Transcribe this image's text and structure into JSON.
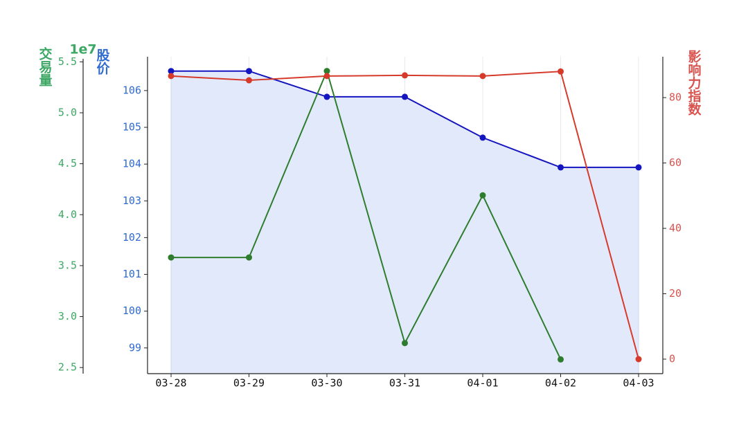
{
  "chart_data": {
    "type": "line",
    "categories": [
      "03-28",
      "03-29",
      "03-30",
      "03-31",
      "04-01",
      "04-02",
      "04-03"
    ],
    "ylabel": "股价",
    "y2label": "影响力指数",
    "y3label": "交易量",
    "y3scale": "1e7",
    "ylim": [
      98.3,
      106.92
    ],
    "yticks": [
      99,
      100,
      101,
      102,
      103,
      104,
      105,
      106
    ],
    "y2lim": [
      -4.44,
      92.5
    ],
    "y2ticks": [
      0,
      20,
      40,
      60,
      80
    ],
    "y3lim": [
      2.44,
      5.55
    ],
    "y3ticks": [
      {
        "value": 2.5,
        "label": "2.5"
      },
      {
        "value": 3,
        "label": "3.0"
      },
      {
        "value": 3.5,
        "label": "3.5"
      },
      {
        "value": 4,
        "label": "4.0"
      },
      {
        "value": 4.5,
        "label": "4.5"
      },
      {
        "value": 5,
        "label": "5.0"
      },
      {
        "value": 5.5,
        "label": "5.5"
      }
    ],
    "grid": true,
    "series": [
      {
        "axis": "y",
        "color": "#1515c0",
        "area_color": "#e2e9fb",
        "label_color": "#2f6bd0",
        "values": [
          106.53,
          106.53,
          105.83,
          105.83,
          104.72,
          103.91,
          103.91
        ]
      },
      {
        "axis": "y3",
        "color": "#2e7d2e",
        "label_color": "#3da764",
        "values": [
          3.58,
          3.58,
          5.41,
          2.74,
          4.19,
          2.58,
          null
        ]
      },
      {
        "axis": "y2",
        "color": "#d63a2a",
        "label_color": "#d9534f",
        "values": [
          86.6,
          85.3,
          86.6,
          86.8,
          86.6,
          88.0,
          0
        ]
      }
    ]
  }
}
